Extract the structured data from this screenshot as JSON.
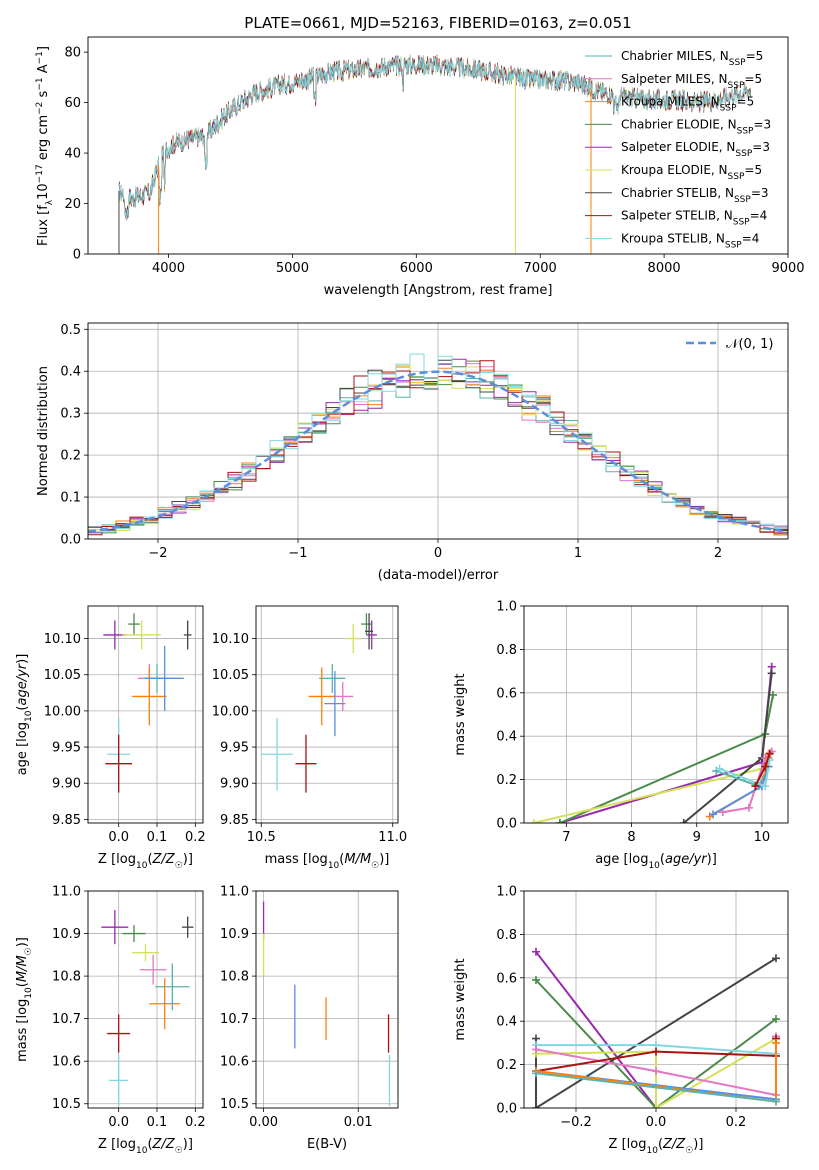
{
  "colors": {
    "chabrier_miles": "#5ab4ac",
    "salpeter_miles": "#e377c2",
    "kroupa_miles": "#ff7f0e",
    "chabrier_elodie": "#4a8a4a",
    "salpeter_elodie": "#9a27b0",
    "kroupa_elodie": "#d4e157",
    "chabrier_stelib": "#444444",
    "salpeter_stelib": "#aa1111",
    "kroupa_stelib": "#80d8e0",
    "normal": "#5a8ee0",
    "grid": "#b0b0b0"
  },
  "chart_data": [
    {
      "id": "spectrum",
      "type": "line",
      "title": "PLATE=0661, MJD=52163, FIBERID=0163, z=0.051",
      "xlabel": "wavelength [Angstrom, rest frame]",
      "ylabel": "Flux [f_λ10^-17 erg cm^-2 s^-1 A^-1]",
      "xlim": [
        3350,
        9000
      ],
      "ylim": [
        0,
        86
      ],
      "xticks": [
        4000,
        5000,
        6000,
        7000,
        8000,
        9000
      ],
      "yticks": [
        0,
        20,
        40,
        60,
        80
      ],
      "grid": false,
      "legend_position": "top-right",
      "legend": [
        {
          "label": "Chabrier MILES, N_SSP=5",
          "color_key": "chabrier_miles"
        },
        {
          "label": "Salpeter MILES, N_SSP=5",
          "color_key": "salpeter_miles"
        },
        {
          "label": "Kroupa MILES, N_SSP=5",
          "color_key": "kroupa_miles"
        },
        {
          "label": "Chabrier ELODIE, N_SSP=3",
          "color_key": "chabrier_elodie"
        },
        {
          "label": "Salpeter ELODIE, N_SSP=3",
          "color_key": "salpeter_elodie"
        },
        {
          "label": "Kroupa ELODIE, N_SSP=5",
          "color_key": "kroupa_elodie"
        },
        {
          "label": "Chabrier STELIB, N_SSP=3",
          "color_key": "chabrier_stelib"
        },
        {
          "label": "Salpeter STELIB, N_SSP=4",
          "color_key": "salpeter_stelib"
        },
        {
          "label": "Kroupa STELIB, N_SSP=4",
          "color_key": "kroupa_stelib"
        }
      ],
      "continuum": {
        "x": [
          3600,
          3700,
          3850,
          3950,
          4050,
          4200,
          4300,
          4500,
          4700,
          4900,
          5100,
          5300,
          5500,
          5700,
          5900,
          6100,
          6300,
          6500,
          6700,
          6900,
          7100,
          7300,
          7500,
          7700,
          7900,
          8100,
          8300,
          8500,
          8700
        ],
        "y": [
          25,
          22,
          24,
          40,
          44,
          46,
          47,
          57,
          64,
          67,
          69,
          72,
          73,
          74,
          75,
          75,
          74,
          73,
          71,
          69,
          69,
          68,
          64,
          62,
          61,
          61,
          60,
          62,
          65
        ]
      },
      "dropouts": [
        {
          "x": 3600,
          "color_key": "chabrier_stelib",
          "start": 3600
        },
        {
          "x": 3920,
          "color_key": "kroupa_miles",
          "start": 3920
        },
        {
          "x": 6800,
          "color_key": "kroupa_elodie",
          "start": 3600
        },
        {
          "x": 7410,
          "color_key": "kroupa_miles",
          "start": 3600
        }
      ]
    },
    {
      "id": "residuals",
      "type": "histogram",
      "xlabel": "(data-model)/error",
      "ylabel": "Normed distribution",
      "xlim": [
        -2.5,
        2.5
      ],
      "ylim": [
        0,
        0.515
      ],
      "xticks": [
        -2,
        -1,
        0,
        1,
        2
      ],
      "yticks": [
        0.0,
        0.1,
        0.2,
        0.3,
        0.4,
        0.5
      ],
      "grid": true,
      "legend_position": "top-right",
      "legend": [
        {
          "label": "N(0,1)",
          "color_key": "normal"
        }
      ],
      "bin_width": 0.1,
      "bin_start": -2.5
    },
    {
      "id": "age_vs_Z",
      "type": "errorbar",
      "xlabel": "Z [log10(Z/Z☉)]",
      "ylabel": "age [log10(age/yr)]",
      "xlim": [
        -0.08,
        0.22
      ],
      "ylim": [
        9.845,
        10.145
      ],
      "xticks": [
        0.0,
        0.1,
        0.2
      ],
      "yticks": [
        9.85,
        9.9,
        9.95,
        10.0,
        10.05,
        10.1
      ],
      "grid": true,
      "points": [
        {
          "color_key": "salpeter_elodie",
          "x": -0.01,
          "xerr": 0.03,
          "y": 10.105,
          "yerr": 0.02
        },
        {
          "color_key": "chabrier_elodie",
          "x": 0.04,
          "xerr": 0.015,
          "y": 10.12,
          "yerr": 0.015
        },
        {
          "color_key": "kroupa_elodie",
          "x": 0.06,
          "xerr": 0.05,
          "y": 10.105,
          "yerr": 0.02
        },
        {
          "color_key": "chabrier_stelib",
          "x": 0.18,
          "xerr": 0.01,
          "y": 10.105,
          "yerr": 0.02
        },
        {
          "color_key": "salpeter_miles",
          "x": 0.08,
          "xerr": 0.03,
          "y": 10.045,
          "yerr": 0.02
        },
        {
          "color_key": "chabrier_miles",
          "x": 0.1,
          "xerr": 0.035,
          "y": 10.045,
          "yerr": 0.02
        },
        {
          "color_key": "kroupa_miles",
          "x": 0.08,
          "xerr": 0.045,
          "y": 10.02,
          "yerr": 0.04
        },
        {
          "color_key": "normal",
          "x": 0.12,
          "xerr": 0.05,
          "y": 10.045,
          "yerr": 0.045
        },
        {
          "color_key": "kroupa_stelib",
          "x": 0.0,
          "xerr": 0.03,
          "y": 9.94,
          "yerr": 0.05
        },
        {
          "color_key": "salpeter_stelib",
          "x": 0.0,
          "xerr": 0.035,
          "y": 9.927,
          "yerr": 0.04
        }
      ]
    },
    {
      "id": "age_vs_mass",
      "type": "errorbar",
      "xlabel": "mass [log10(M/M☉)]",
      "ylabel": "",
      "xlim": [
        10.48,
        11.02
      ],
      "ylim": [
        9.845,
        10.145
      ],
      "xticks": [
        10.5,
        11.0
      ],
      "yticks": [
        9.85,
        9.9,
        9.95,
        10.0,
        10.05,
        10.1
      ],
      "grid": true,
      "points": [
        {
          "color_key": "salpeter_elodie",
          "x": 10.92,
          "xerr": 0.02,
          "y": 10.105,
          "yerr": 0.02
        },
        {
          "color_key": "chabrier_elodie",
          "x": 10.9,
          "xerr": 0.02,
          "y": 10.12,
          "yerr": 0.015
        },
        {
          "color_key": "kroupa_elodie",
          "x": 10.85,
          "xerr": 0.03,
          "y": 10.1,
          "yerr": 0.02
        },
        {
          "color_key": "chabrier_stelib",
          "x": 10.91,
          "xerr": 0.015,
          "y": 10.11,
          "yerr": 0.025
        },
        {
          "color_key": "salpeter_miles",
          "x": 10.81,
          "xerr": 0.04,
          "y": 10.02,
          "yerr": 0.02
        },
        {
          "color_key": "chabrier_miles",
          "x": 10.77,
          "xerr": 0.05,
          "y": 10.045,
          "yerr": 0.02
        },
        {
          "color_key": "kroupa_miles",
          "x": 10.73,
          "xerr": 0.05,
          "y": 10.02,
          "yerr": 0.04
        },
        {
          "color_key": "normal",
          "x": 10.78,
          "xerr": 0.04,
          "y": 10.01,
          "yerr": 0.045
        },
        {
          "color_key": "kroupa_stelib",
          "x": 10.56,
          "xerr": 0.06,
          "y": 9.94,
          "yerr": 0.05
        },
        {
          "color_key": "salpeter_stelib",
          "x": 10.67,
          "xerr": 0.04,
          "y": 9.927,
          "yerr": 0.04
        }
      ]
    },
    {
      "id": "weight_vs_age",
      "type": "line",
      "xlabel": "age [log10(age/yr)]",
      "ylabel": "mass weight",
      "xlim": [
        6.35,
        10.4
      ],
      "ylim": [
        0,
        1.0
      ],
      "xticks": [
        7,
        8,
        9,
        10
      ],
      "yticks": [
        0.0,
        0.2,
        0.4,
        0.6,
        0.8,
        1.0
      ],
      "grid": true,
      "series": [
        {
          "color_key": "salpeter_elodie",
          "x": [
            6.9,
            10.0,
            10.15
          ],
          "y": [
            0.0,
            0.28,
            0.72
          ]
        },
        {
          "color_key": "chabrier_elodie",
          "x": [
            6.9,
            10.05,
            10.17
          ],
          "y": [
            0.0,
            0.41,
            0.59
          ]
        },
        {
          "color_key": "kroupa_elodie",
          "x": [
            6.5,
            10.0,
            10.1
          ],
          "y": [
            0.0,
            0.25,
            0.32
          ]
        },
        {
          "color_key": "chabrier_stelib",
          "x": [
            8.8,
            10.0,
            10.15
          ],
          "y": [
            0.0,
            0.3,
            0.69
          ]
        },
        {
          "color_key": "salpeter_miles",
          "x": [
            9.4,
            9.8,
            10.05,
            10.15
          ],
          "y": [
            0.05,
            0.07,
            0.3,
            0.33
          ]
        },
        {
          "color_key": "chabrier_miles",
          "x": [
            9.3,
            9.95,
            10.1
          ],
          "y": [
            0.24,
            0.17,
            0.26
          ]
        },
        {
          "color_key": "kroupa_miles",
          "x": [
            9.2,
            10.0,
            10.1
          ],
          "y": [
            0.03,
            0.17,
            0.3
          ]
        },
        {
          "color_key": "normal",
          "x": [
            9.25,
            10.0,
            10.1
          ],
          "y": [
            0.04,
            0.17,
            0.26
          ]
        },
        {
          "color_key": "kroupa_stelib",
          "x": [
            9.35,
            10.05,
            10.12
          ],
          "y": [
            0.25,
            0.17,
            0.29
          ]
        },
        {
          "color_key": "salpeter_stelib",
          "x": [
            9.9,
            10.05,
            10.12
          ],
          "y": [
            0.17,
            0.26,
            0.32
          ]
        }
      ]
    },
    {
      "id": "mass_vs_Z",
      "type": "errorbar",
      "xlabel": "Z [log10(Z/Z☉)]",
      "ylabel": "mass [log10(M/M☉)]",
      "xlim": [
        -0.08,
        0.22
      ],
      "ylim": [
        10.49,
        11.0
      ],
      "xticks": [
        0.0,
        0.1,
        0.2
      ],
      "yticks": [
        10.5,
        10.6,
        10.7,
        10.8,
        10.9,
        11.0
      ],
      "grid": true,
      "points": [
        {
          "color_key": "salpeter_elodie",
          "x": -0.01,
          "xerr": 0.035,
          "y": 10.915,
          "yerr": 0.04
        },
        {
          "color_key": "chabrier_elodie",
          "x": 0.04,
          "xerr": 0.03,
          "y": 10.9,
          "yerr": 0.02
        },
        {
          "color_key": "chabrier_stelib",
          "x": 0.18,
          "xerr": 0.015,
          "y": 10.915,
          "yerr": 0.025
        },
        {
          "color_key": "kroupa_elodie",
          "x": 0.07,
          "xerr": 0.035,
          "y": 10.855,
          "yerr": 0.02
        },
        {
          "color_key": "salpeter_miles",
          "x": 0.09,
          "xerr": 0.035,
          "y": 10.815,
          "yerr": 0.035
        },
        {
          "color_key": "chabrier_miles",
          "x": 0.14,
          "xerr": 0.045,
          "y": 10.775,
          "yerr": 0.055
        },
        {
          "color_key": "kroupa_miles",
          "x": 0.12,
          "xerr": 0.04,
          "y": 10.735,
          "yerr": 0.06
        },
        {
          "color_key": "salpeter_stelib",
          "x": 0.0,
          "xerr": 0.03,
          "y": 10.665,
          "yerr": 0.045
        },
        {
          "color_key": "kroupa_stelib",
          "x": 0.0,
          "xerr": 0.025,
          "y": 10.555,
          "yerr": 0.06
        }
      ]
    },
    {
      "id": "mass_vs_ebv",
      "type": "errorbar",
      "xlabel": "E(B-V)",
      "ylabel": "",
      "xlim": [
        -0.0008,
        0.0142
      ],
      "ylim": [
        10.49,
        11.0
      ],
      "xticks": [
        0.0,
        0.01
      ],
      "yticks": [
        10.5,
        10.6,
        10.7,
        10.8,
        10.9,
        11.0
      ],
      "grid": true,
      "points": [
        {
          "color_key": "salpeter_elodie",
          "x": 0.0,
          "xerr": 0.0,
          "y": 10.93,
          "yerr": 0.045
        },
        {
          "color_key": "kroupa_elodie",
          "x": 0.0,
          "xerr": 0.0,
          "y": 10.85,
          "yerr": 0.05
        },
        {
          "color_key": "normal",
          "x": 0.0033,
          "xerr": 0.0,
          "y": 10.705,
          "yerr": 0.075
        },
        {
          "color_key": "kroupa_miles",
          "x": 0.0066,
          "xerr": 0.0,
          "y": 10.7,
          "yerr": 0.05
        },
        {
          "color_key": "salpeter_stelib",
          "x": 0.0132,
          "xerr": 0.0,
          "y": 10.665,
          "yerr": 0.045
        },
        {
          "color_key": "kroupa_stelib",
          "x": 0.0133,
          "xerr": 0.0,
          "y": 10.555,
          "yerr": 0.06
        }
      ]
    },
    {
      "id": "weight_vs_Z",
      "type": "line",
      "xlabel": "Z [log10(Z/Z☉)]",
      "ylabel": "mass weight",
      "xlim": [
        -0.33,
        0.33
      ],
      "ylim": [
        0,
        1.0
      ],
      "xticks": [
        -0.2,
        0.0,
        0.2
      ],
      "yticks": [
        0.0,
        0.2,
        0.4,
        0.6,
        0.8,
        1.0
      ],
      "grid": true,
      "series": [
        {
          "color_key": "salpeter_elodie",
          "x": [
            -0.3,
            0.0
          ],
          "y": [
            0.72,
            0.0
          ]
        },
        {
          "color_key": "chabrier_elodie",
          "x": [
            -0.3,
            0.0,
            0.3
          ],
          "y": [
            0.59,
            0.0,
            0.41
          ]
        },
        {
          "color_key": "chabrier_stelib",
          "x": [
            -0.3,
            -0.3,
            0.3
          ],
          "y": [
            0.32,
            0.0,
            0.69
          ]
        },
        {
          "color_key": "kroupa_elodie",
          "x": [
            -0.3,
            0.0,
            0.0,
            0.3
          ],
          "y": [
            0.25,
            0.26,
            0.0,
            0.32
          ]
        },
        {
          "color_key": "kroupa_stelib",
          "x": [
            -0.3,
            0.0,
            0.3
          ],
          "y": [
            0.29,
            0.29,
            0.25
          ]
        },
        {
          "color_key": "salpeter_miles",
          "x": [
            -0.3,
            0.0,
            0.3,
            0.3
          ],
          "y": [
            0.27,
            0.17,
            0.06,
            0.33
          ]
        },
        {
          "color_key": "salpeter_stelib",
          "x": [
            -0.3,
            0.0,
            0.3,
            0.3
          ],
          "y": [
            0.17,
            0.26,
            0.24,
            0.32
          ]
        },
        {
          "color_key": "normal",
          "x": [
            -0.3,
            0.3
          ],
          "y": [
            0.17,
            0.04
          ]
        },
        {
          "color_key": "kroupa_miles",
          "x": [
            -0.3,
            0.3,
            0.3
          ],
          "y": [
            0.17,
            0.03,
            0.3
          ]
        },
        {
          "color_key": "chabrier_miles",
          "x": [
            -0.3,
            0.3
          ],
          "y": [
            0.16,
            0.03
          ]
        }
      ]
    }
  ]
}
